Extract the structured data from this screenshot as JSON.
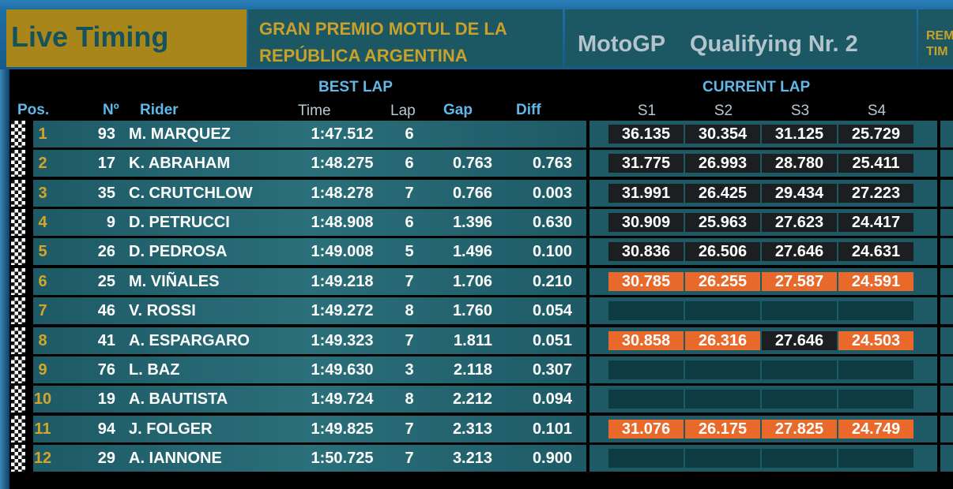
{
  "header": {
    "title": "Live Timing",
    "event": [
      "GRAN PREMIO MOTUL DE LA",
      "REPÚBLICA ARGENTINA"
    ],
    "class": "MotoGP",
    "session": "Qualifying Nr. 2",
    "remaining": [
      "REM",
      "TIM"
    ]
  },
  "table": {
    "groups": {
      "best_lap": "BEST LAP",
      "current_lap": "CURRENT LAP"
    },
    "columns": {
      "pos": "Pos.",
      "num": "Nº",
      "rider": "Rider",
      "time": "Time",
      "lap": "Lap",
      "gap": "Gap",
      "diff": "Diff",
      "sectors": [
        "S1",
        "S2",
        "S3",
        "S4"
      ]
    },
    "rows": [
      {
        "pos": "1",
        "num": "93",
        "rider": "M. MARQUEZ",
        "time": "1:47.512",
        "lap": "6",
        "gap": null,
        "diff": null,
        "sectors": [
          "36.135",
          "30.354",
          "31.125",
          "25.729"
        ],
        "sector_colors": [
          "#1b1f22",
          "#1b1f22",
          "#1b1f22",
          "#1b1f22"
        ]
      },
      {
        "pos": "2",
        "num": "17",
        "rider": "K. ABRAHAM",
        "time": "1:48.275",
        "lap": "6",
        "gap": "0.763",
        "diff": "0.763",
        "sectors": [
          "31.775",
          "26.993",
          "28.780",
          "25.411"
        ],
        "sector_colors": [
          "#1b1f22",
          "#1b1f22",
          "#1b1f22",
          "#1b1f22"
        ]
      },
      {
        "pos": "3",
        "num": "35",
        "rider": "C. CRUTCHLOW",
        "time": "1:48.278",
        "lap": "7",
        "gap": "0.766",
        "diff": "0.003",
        "sectors": [
          "31.991",
          "26.425",
          "29.434",
          "27.223"
        ],
        "sector_colors": [
          "#1b1f22",
          "#1b1f22",
          "#1b1f22",
          "#1b1f22"
        ]
      },
      {
        "pos": "4",
        "num": "9",
        "rider": "D. PETRUCCI",
        "time": "1:48.908",
        "lap": "6",
        "gap": "1.396",
        "diff": "0.630",
        "sectors": [
          "30.909",
          "25.963",
          "27.623",
          "24.417"
        ],
        "sector_colors": [
          "#1b1f22",
          "#1b1f22",
          "#1b1f22",
          "#1b1f22"
        ]
      },
      {
        "pos": "5",
        "num": "26",
        "rider": "D. PEDROSA",
        "time": "1:49.008",
        "lap": "5",
        "gap": "1.496",
        "diff": "0.100",
        "sectors": [
          "30.836",
          "26.506",
          "27.646",
          "24.631"
        ],
        "sector_colors": [
          "#1b1f22",
          "#1b1f22",
          "#1b1f22",
          "#1b1f22"
        ]
      },
      {
        "pos": "6",
        "num": "25",
        "rider": "M. VIÑALES",
        "time": "1:49.218",
        "lap": "7",
        "gap": "1.706",
        "diff": "0.210",
        "sectors": [
          "30.785",
          "26.255",
          "27.587",
          "24.591"
        ],
        "sector_colors": [
          "#e8692a",
          "#e8692a",
          "#e8692a",
          "#e8692a"
        ]
      },
      {
        "pos": "7",
        "num": "46",
        "rider": "V. ROSSI",
        "time": "1:49.272",
        "lap": "8",
        "gap": "1.760",
        "diff": "0.054",
        "sectors": [
          null,
          null,
          null,
          null
        ],
        "sector_colors": [
          "#0e3a42",
          "#0e3a42",
          "#0e3a42",
          "#0e3a42"
        ]
      },
      {
        "pos": "8",
        "num": "41",
        "rider": "A. ESPARGARO",
        "time": "1:49.323",
        "lap": "7",
        "gap": "1.811",
        "diff": "0.051",
        "sectors": [
          "30.858",
          "26.316",
          "27.646",
          "24.503"
        ],
        "sector_colors": [
          "#e8692a",
          "#e8692a",
          "#1b1f22",
          "#e8692a"
        ]
      },
      {
        "pos": "9",
        "num": "76",
        "rider": "L. BAZ",
        "time": "1:49.630",
        "lap": "3",
        "gap": "2.118",
        "diff": "0.307",
        "sectors": [
          null,
          null,
          null,
          null
        ],
        "sector_colors": [
          "#0e3a42",
          "#0e3a42",
          "#0e3a42",
          "#0e3a42"
        ]
      },
      {
        "pos": "10",
        "num": "19",
        "rider": "A. BAUTISTA",
        "time": "1:49.724",
        "lap": "8",
        "gap": "2.212",
        "diff": "0.094",
        "sectors": [
          null,
          null,
          null,
          null
        ],
        "sector_colors": [
          "#0e3a42",
          "#0e3a42",
          "#0e3a42",
          "#0e3a42"
        ]
      },
      {
        "pos": "11",
        "num": "94",
        "rider": "J. FOLGER",
        "time": "1:49.825",
        "lap": "7",
        "gap": "2.313",
        "diff": "0.101",
        "sectors": [
          "31.076",
          "26.175",
          "27.825",
          "24.749"
        ],
        "sector_colors": [
          "#e8692a",
          "#e8692a",
          "#e8692a",
          "#e8692a"
        ]
      },
      {
        "pos": "12",
        "num": "29",
        "rider": "A. IANNONE",
        "time": "1:50.725",
        "lap": "7",
        "gap": "3.213",
        "diff": "0.900",
        "sectors": [
          null,
          null,
          null,
          null
        ],
        "sector_colors": [
          "#0e3a42",
          "#0e3a42",
          "#0e3a42",
          "#0e3a42"
        ]
      }
    ]
  }
}
